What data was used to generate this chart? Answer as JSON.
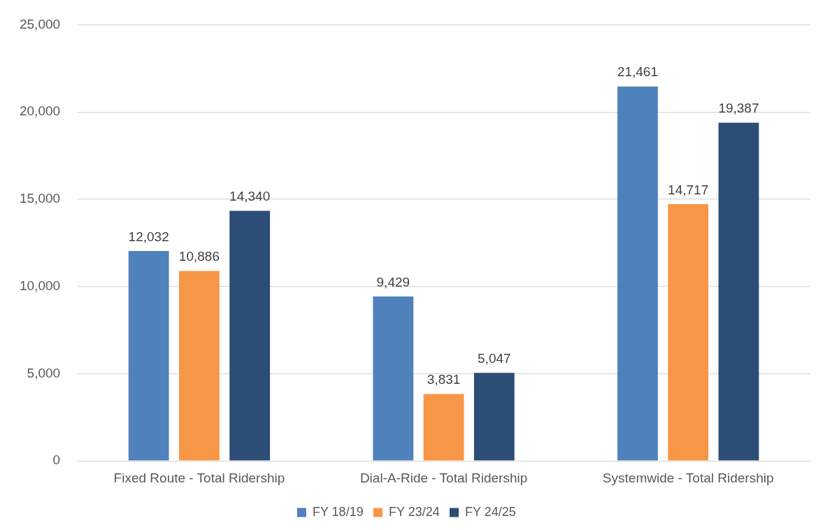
{
  "chart_data": {
    "type": "bar",
    "categories": [
      "Fixed Route - Total Ridership",
      "Dial-A-Ride - Total Ridership",
      "Systemwide - Total Ridership"
    ],
    "series": [
      {
        "name": "FY 18/19",
        "color": "#4f81bd",
        "values": [
          12032,
          9429,
          21461
        ],
        "value_labels": [
          "12,032",
          "9,429",
          "21,461"
        ]
      },
      {
        "name": "FY 23/24",
        "color": "#f79646",
        "values": [
          10886,
          3831,
          14717
        ],
        "value_labels": [
          "10,886",
          "3,831",
          "14,717"
        ]
      },
      {
        "name": "FY 24/25",
        "color": "#2c4d75",
        "values": [
          14340,
          5047,
          19387
        ],
        "value_labels": [
          "14,340",
          "5,047",
          "19,387"
        ]
      }
    ],
    "ylim": [
      0,
      25000
    ],
    "yticks": [
      {
        "value": 0,
        "label": "0"
      },
      {
        "value": 5000,
        "label": "5,000"
      },
      {
        "value": 10000,
        "label": "10,000"
      },
      {
        "value": 15000,
        "label": "15,000"
      },
      {
        "value": 20000,
        "label": "20,000"
      },
      {
        "value": 25000,
        "label": "25,000"
      }
    ],
    "grid": "y",
    "legend": "bottom"
  }
}
